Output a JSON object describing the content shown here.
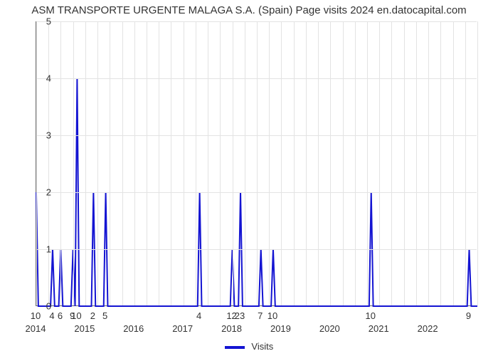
{
  "chart": {
    "type": "line",
    "title": "ASM TRANSPORTE URGENTE MALAGA S.A. (Spain) Page visits 2024 en.datocapital.com",
    "title_fontsize": 15,
    "title_color": "#333333",
    "background_color": "#ffffff",
    "grid_color": "#e3e3e3",
    "axis_color": "#6b6b6b",
    "line_color": "#1414d2",
    "line_width": 2,
    "x_range_months": {
      "start": 0,
      "end": 108
    },
    "ylim": [
      0,
      5
    ],
    "ytick_step": 1,
    "yticks": [
      {
        "v": 0,
        "label": "0"
      },
      {
        "v": 1,
        "label": "1"
      },
      {
        "v": 2,
        "label": "2"
      },
      {
        "v": 3,
        "label": "3"
      },
      {
        "v": 4,
        "label": "4"
      },
      {
        "v": 5,
        "label": "5"
      }
    ],
    "year_ticks": [
      {
        "m": 0,
        "label": "2014"
      },
      {
        "m": 12,
        "label": "2015"
      },
      {
        "m": 24,
        "label": "2016"
      },
      {
        "m": 36,
        "label": "2017"
      },
      {
        "m": 48,
        "label": "2018"
      },
      {
        "m": 60,
        "label": "2019"
      },
      {
        "m": 72,
        "label": "2020"
      },
      {
        "m": 84,
        "label": "2021"
      },
      {
        "m": 96,
        "label": "2022"
      }
    ],
    "minor_tick_step_months": 3,
    "x_data_labels": [
      {
        "m": 0,
        "label": "10"
      },
      {
        "m": 4,
        "label": "4"
      },
      {
        "m": 6,
        "label": "6"
      },
      {
        "m": 9,
        "label": "9"
      },
      {
        "m": 10,
        "label": "10"
      },
      {
        "m": 14,
        "label": "2"
      },
      {
        "m": 17,
        "label": "5"
      },
      {
        "m": 40,
        "label": "4"
      },
      {
        "m": 48,
        "label": "12"
      },
      {
        "m": 50,
        "label": "23"
      },
      {
        "m": 55,
        "label": "7"
      },
      {
        "m": 58,
        "label": "10"
      },
      {
        "m": 82,
        "label": "10"
      },
      {
        "m": 106,
        "label": "9"
      }
    ],
    "series": {
      "name": "Visits",
      "points": [
        {
          "m": 0,
          "y": 2
        },
        {
          "m": 0.5,
          "y": 0
        },
        {
          "m": 3.5,
          "y": 0
        },
        {
          "m": 4,
          "y": 1
        },
        {
          "m": 4.5,
          "y": 0
        },
        {
          "m": 5.5,
          "y": 0
        },
        {
          "m": 6,
          "y": 1
        },
        {
          "m": 6.5,
          "y": 0
        },
        {
          "m": 8.5,
          "y": 0
        },
        {
          "m": 9,
          "y": 1
        },
        {
          "m": 9.5,
          "y": 0
        },
        {
          "m": 9.5,
          "y": 0
        },
        {
          "m": 10,
          "y": 4
        },
        {
          "m": 10.5,
          "y": 0
        },
        {
          "m": 13.5,
          "y": 0
        },
        {
          "m": 14,
          "y": 2
        },
        {
          "m": 14.5,
          "y": 0
        },
        {
          "m": 16.5,
          "y": 0
        },
        {
          "m": 17,
          "y": 2
        },
        {
          "m": 17.5,
          "y": 0
        },
        {
          "m": 39.5,
          "y": 0
        },
        {
          "m": 40,
          "y": 2
        },
        {
          "m": 40.5,
          "y": 0
        },
        {
          "m": 47.5,
          "y": 0
        },
        {
          "m": 48,
          "y": 1
        },
        {
          "m": 48.5,
          "y": 0
        },
        {
          "m": 49.5,
          "y": 0
        },
        {
          "m": 50,
          "y": 2
        },
        {
          "m": 50.5,
          "y": 0
        },
        {
          "m": 54.5,
          "y": 0
        },
        {
          "m": 55,
          "y": 1
        },
        {
          "m": 55.5,
          "y": 0
        },
        {
          "m": 57.5,
          "y": 0
        },
        {
          "m": 58,
          "y": 1
        },
        {
          "m": 58.5,
          "y": 0
        },
        {
          "m": 81.5,
          "y": 0
        },
        {
          "m": 82,
          "y": 2
        },
        {
          "m": 82.5,
          "y": 0
        },
        {
          "m": 105.5,
          "y": 0
        },
        {
          "m": 106,
          "y": 1
        },
        {
          "m": 106.5,
          "y": 0
        },
        {
          "m": 108,
          "y": 0
        }
      ]
    },
    "legend": {
      "label": "Visits"
    }
  }
}
